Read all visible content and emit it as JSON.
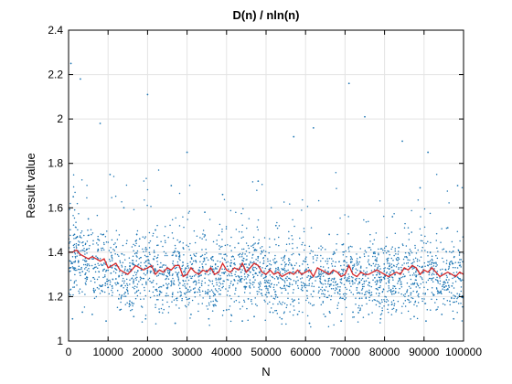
{
  "chart_data": {
    "type": "scatter",
    "title": "D(n) / nln(n)",
    "xlabel": "N",
    "ylabel": "Result value",
    "xlim": [
      0,
      100000
    ],
    "ylim": [
      1,
      2.4
    ],
    "grid": true,
    "legend": "none",
    "xticks": [
      0,
      10000,
      20000,
      30000,
      40000,
      50000,
      60000,
      70000,
      80000,
      90000,
      100000
    ],
    "xtick_labels": [
      "0",
      "10000",
      "20000",
      "30000",
      "40000",
      "50000",
      "60000",
      "70000",
      "80000",
      "90000",
      "100000"
    ],
    "yticks": [
      1,
      1.2,
      1.4,
      1.6,
      1.8,
      2,
      2.2,
      2.4
    ],
    "ytick_labels": [
      "1",
      "1.2",
      "1.4",
      "1.6",
      "1.8",
      "2",
      "2.2",
      "2.4"
    ],
    "colors": {
      "points": "#1f77b4",
      "line": "#d62728"
    },
    "series": [
      {
        "type": "scatter",
        "x": [
          600,
          1200,
          2000,
          3000,
          4200,
          5000,
          6500,
          8000,
          9000,
          10500,
          12000,
          14000,
          15500,
          17000,
          18500,
          20000,
          22000,
          24000,
          26000,
          28000,
          30000,
          32000,
          34500,
          37000,
          39000,
          41000,
          43000,
          45500,
          48000,
          50000,
          52500,
          55000,
          57000,
          59500,
          62000,
          64000,
          66000,
          68500,
          71000,
          73000,
          75000,
          77500,
          80000,
          82000,
          84500,
          86500,
          89000,
          91000,
          93500,
          96000,
          98500,
          1000,
          3500,
          6000,
          9500,
          13000,
          16500,
          19500,
          23000,
          27000,
          31000,
          35500,
          40000,
          44000,
          47000,
          51000,
          54000,
          58000,
          61000,
          65000,
          69000,
          72000,
          76000,
          79000,
          83000,
          87500,
          90500,
          94500,
          97500,
          1500,
          4500,
          7500,
          11000,
          14500,
          18000,
          21500,
          25000,
          29000,
          33000,
          36500,
          42000,
          46000,
          49000,
          53000,
          56500,
          60000,
          63500,
          67000,
          70500,
          74000,
          78000,
          81500,
          85500,
          88000,
          92500,
          95500,
          99000
        ],
        "y": [
          2.25,
          1.65,
          1.42,
          2.18,
          1.3,
          1.55,
          1.22,
          1.98,
          1.35,
          1.75,
          1.28,
          1.6,
          1.18,
          1.45,
          1.32,
          2.11,
          1.5,
          1.25,
          1.7,
          1.38,
          1.85,
          1.27,
          1.58,
          1.21,
          1.66,
          1.34,
          1.44,
          1.19,
          1.72,
          1.29,
          1.52,
          1.23,
          1.92,
          1.36,
          1.96,
          1.26,
          1.48,
          1.31,
          2.16,
          1.24,
          2.01,
          1.4,
          1.28,
          1.56,
          1.9,
          1.33,
          1.69,
          1.85,
          1.27,
          1.51,
          1.7,
          1.1,
          1.13,
          1.12,
          1.09,
          1.14,
          1.11,
          1.1,
          1.13,
          1.08,
          1.12,
          1.1,
          1.14,
          1.09,
          1.11,
          1.13,
          1.1,
          1.12,
          1.08,
          1.11,
          1.09,
          1.13,
          1.12,
          1.1,
          1.14,
          1.11,
          1.09,
          1.12,
          1.1,
          1.48,
          1.36,
          1.41,
          1.33,
          1.3,
          1.46,
          1.37,
          1.29,
          1.42,
          1.32,
          1.38,
          1.35,
          1.31,
          1.4,
          1.28,
          1.34,
          1.37,
          1.3,
          1.39,
          1.27,
          1.33,
          1.36,
          1.31,
          1.38,
          1.29,
          1.35,
          1.32,
          1.34
        ]
      },
      {
        "type": "line",
        "x": [
          0,
          1000,
          2000,
          3000,
          4000,
          5000,
          6000,
          7000,
          8000,
          9000,
          10000,
          11000,
          12000,
          13000,
          14000,
          15000,
          16000,
          17000,
          18000,
          19000,
          20000,
          21000,
          22000,
          23000,
          24000,
          25000,
          26000,
          27000,
          28000,
          29000,
          30000,
          31000,
          32000,
          33000,
          34000,
          35000,
          36000,
          37000,
          38000,
          39000,
          40000,
          41000,
          42000,
          43000,
          44000,
          45000,
          46000,
          47000,
          48000,
          49000,
          50000,
          51000,
          52000,
          53000,
          54000,
          55000,
          56000,
          57000,
          58000,
          59000,
          60000,
          61000,
          62000,
          63000,
          64000,
          65000,
          66000,
          67000,
          68000,
          69000,
          70000,
          71000,
          72000,
          73000,
          74000,
          75000,
          76000,
          77000,
          78000,
          79000,
          80000,
          81000,
          82000,
          83000,
          84000,
          85000,
          86000,
          87000,
          88000,
          89000,
          90000,
          91000,
          92000,
          93000,
          94000,
          95000,
          96000,
          97000,
          98000,
          99000,
          100000
        ],
        "y": [
          1.4,
          1.4,
          1.41,
          1.39,
          1.38,
          1.37,
          1.38,
          1.37,
          1.36,
          1.37,
          1.33,
          1.34,
          1.35,
          1.32,
          1.31,
          1.3,
          1.32,
          1.34,
          1.33,
          1.32,
          1.33,
          1.34,
          1.3,
          1.32,
          1.31,
          1.33,
          1.32,
          1.34,
          1.34,
          1.29,
          1.3,
          1.33,
          1.31,
          1.3,
          1.32,
          1.31,
          1.33,
          1.3,
          1.31,
          1.35,
          1.32,
          1.31,
          1.33,
          1.32,
          1.35,
          1.31,
          1.33,
          1.35,
          1.34,
          1.31,
          1.3,
          1.32,
          1.3,
          1.31,
          1.29,
          1.3,
          1.31,
          1.3,
          1.32,
          1.3,
          1.31,
          1.32,
          1.29,
          1.33,
          1.32,
          1.31,
          1.3,
          1.32,
          1.31,
          1.29,
          1.3,
          1.34,
          1.3,
          1.29,
          1.31,
          1.3,
          1.3,
          1.31,
          1.32,
          1.31,
          1.3,
          1.29,
          1.3,
          1.31,
          1.3,
          1.33,
          1.32,
          1.34,
          1.33,
          1.3,
          1.32,
          1.31,
          1.33,
          1.31,
          1.29,
          1.3,
          1.31,
          1.3,
          1.29,
          1.31,
          1.3
        ]
      }
    ]
  }
}
